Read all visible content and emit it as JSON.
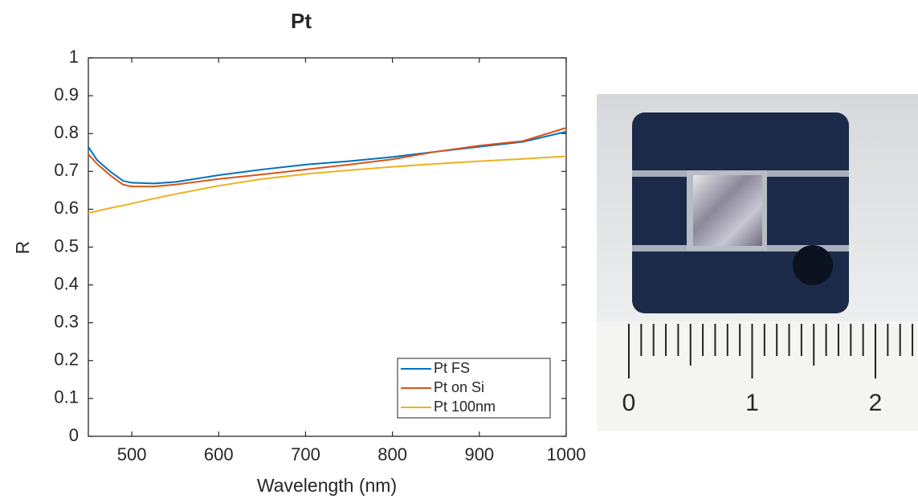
{
  "chart_data": {
    "type": "line",
    "title": "Pt",
    "x_label": "Wavelength (nm)",
    "y_label": "R",
    "x": [
      450,
      460,
      475,
      490,
      500,
      525,
      550,
      600,
      650,
      700,
      750,
      800,
      850,
      900,
      950,
      1000
    ],
    "series": [
      {
        "name": "Pt FS",
        "color": "#0072BD",
        "values": [
          0.765,
          0.73,
          0.7,
          0.675,
          0.67,
          0.668,
          0.672,
          0.69,
          0.705,
          0.718,
          0.727,
          0.738,
          0.752,
          0.765,
          0.778,
          0.805
        ]
      },
      {
        "name": "Pt on Si",
        "color": "#D95319",
        "values": [
          0.745,
          0.72,
          0.69,
          0.665,
          0.66,
          0.66,
          0.665,
          0.68,
          0.692,
          0.705,
          0.718,
          0.732,
          0.752,
          0.768,
          0.78,
          0.815
        ]
      },
      {
        "name": "Pt 100nm",
        "color": "#EDB120",
        "values": [
          0.59,
          0.595,
          0.603,
          0.61,
          0.615,
          0.628,
          0.64,
          0.662,
          0.68,
          0.693,
          0.703,
          0.712,
          0.72,
          0.727,
          0.733,
          0.74
        ]
      }
    ],
    "xlim": [
      450,
      1000
    ],
    "xticks": [
      500,
      600,
      700,
      800,
      900,
      1000
    ],
    "ylim": [
      0,
      1
    ],
    "yticks": [
      0,
      0.1,
      0.2,
      0.3,
      0.4,
      0.5,
      0.6,
      0.7,
      0.8,
      0.9,
      1
    ],
    "legend": "lower right",
    "grid": false
  },
  "photo": {
    "ruler_labels": [
      "0",
      "1",
      "2"
    ]
  }
}
